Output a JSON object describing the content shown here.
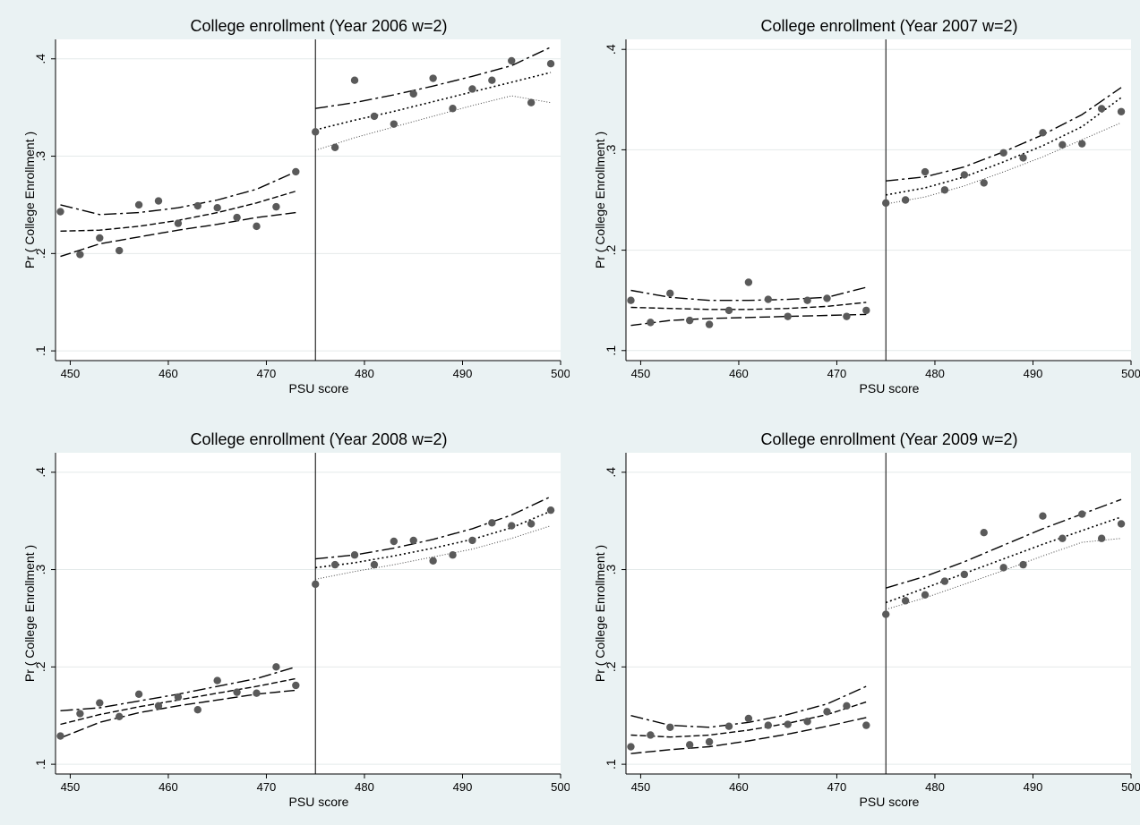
{
  "chart_data": [
    {
      "type": "scatter",
      "title": "College enrollment (Year 2006 w=2)",
      "xlabel": "PSU score",
      "ylabel": "Pr ( College Enrollment )",
      "xlim": [
        448.5,
        500
      ],
      "ylim": [
        0.09,
        0.42
      ],
      "xticks": [
        450,
        460,
        470,
        480,
        490,
        500
      ],
      "xtick_labels": [
        "450",
        "460",
        "470",
        "480",
        "490",
        "500"
      ],
      "yticks": [
        0.1,
        0.2,
        0.3,
        0.4
      ],
      "ytick_labels": [
        ".1",
        ".2",
        ".3",
        ".4"
      ],
      "grid": true,
      "cutoff": 475,
      "points": {
        "x": [
          449,
          451,
          453,
          455,
          457,
          459,
          461,
          463,
          465,
          467,
          469,
          471,
          473,
          475,
          477,
          479,
          481,
          483,
          485,
          487,
          489,
          491,
          493,
          495,
          497,
          499
        ],
        "y": [
          0.243,
          0.199,
          0.216,
          0.203,
          0.25,
          0.254,
          0.231,
          0.249,
          0.247,
          0.237,
          0.228,
          0.248,
          0.284,
          0.325,
          0.309,
          0.378,
          0.341,
          0.333,
          0.364,
          0.38,
          0.349,
          0.369,
          0.378,
          0.398,
          0.355,
          0.395
        ]
      },
      "fits": {
        "left": {
          "x": [
            449,
            453,
            457,
            461,
            465,
            469,
            473
          ],
          "fit": [
            0.223,
            0.224,
            0.228,
            0.234,
            0.242,
            0.252,
            0.264
          ],
          "upper": [
            0.25,
            0.24,
            0.242,
            0.247,
            0.255,
            0.266,
            0.284
          ],
          "lower": [
            0.197,
            0.21,
            0.217,
            0.224,
            0.23,
            0.237,
            0.242
          ]
        },
        "right": {
          "x": [
            475,
            479,
            483,
            487,
            491,
            495,
            499
          ],
          "fit": [
            0.327,
            0.337,
            0.346,
            0.356,
            0.366,
            0.376,
            0.386
          ],
          "upper": [
            0.349,
            0.355,
            0.363,
            0.372,
            0.382,
            0.393,
            0.412
          ],
          "lower": [
            0.306,
            0.319,
            0.33,
            0.341,
            0.352,
            0.362,
            0.355
          ]
        }
      }
    },
    {
      "type": "scatter",
      "title": "College enrollment (Year 2007 w=2)",
      "xlabel": "PSU score",
      "ylabel": "Pr ( College Enrollment )",
      "xlim": [
        448.5,
        500
      ],
      "ylim": [
        0.09,
        0.41
      ],
      "xticks": [
        450,
        460,
        470,
        480,
        490,
        500
      ],
      "xtick_labels": [
        "450",
        "460",
        "470",
        "480",
        "490",
        "500"
      ],
      "yticks": [
        0.1,
        0.2,
        0.3,
        0.4
      ],
      "ytick_labels": [
        ".1",
        ".2",
        ".3",
        ".4"
      ],
      "grid": true,
      "cutoff": 475,
      "points": {
        "x": [
          449,
          451,
          453,
          455,
          457,
          459,
          461,
          463,
          465,
          467,
          469,
          471,
          473,
          475,
          477,
          479,
          481,
          483,
          485,
          487,
          489,
          491,
          493,
          495,
          497,
          499
        ],
        "y": [
          0.15,
          0.128,
          0.157,
          0.13,
          0.126,
          0.14,
          0.168,
          0.151,
          0.134,
          0.15,
          0.152,
          0.134,
          0.14,
          0.247,
          0.25,
          0.278,
          0.26,
          0.275,
          0.267,
          0.297,
          0.292,
          0.317,
          0.305,
          0.306,
          0.341,
          0.338
        ]
      },
      "fits": {
        "left": {
          "x": [
            449,
            453,
            457,
            461,
            465,
            469,
            473
          ],
          "fit": [
            0.143,
            0.142,
            0.141,
            0.141,
            0.142,
            0.144,
            0.148
          ],
          "upper": [
            0.16,
            0.153,
            0.15,
            0.15,
            0.151,
            0.153,
            0.163
          ],
          "lower": [
            0.125,
            0.13,
            0.132,
            0.133,
            0.134,
            0.135,
            0.136
          ]
        },
        "right": {
          "x": [
            475,
            479,
            483,
            487,
            491,
            495,
            499
          ],
          "fit": [
            0.255,
            0.262,
            0.273,
            0.288,
            0.304,
            0.323,
            0.352
          ],
          "upper": [
            0.269,
            0.273,
            0.283,
            0.298,
            0.315,
            0.335,
            0.362
          ],
          "lower": [
            0.246,
            0.253,
            0.264,
            0.278,
            0.293,
            0.31,
            0.327
          ]
        }
      }
    },
    {
      "type": "scatter",
      "title": "College enrollment (Year 2008 w=2)",
      "xlabel": "PSU score",
      "ylabel": "Pr ( College Enrollment )",
      "xlim": [
        448.5,
        500
      ],
      "ylim": [
        0.09,
        0.42
      ],
      "xticks": [
        450,
        460,
        470,
        480,
        490,
        500
      ],
      "xtick_labels": [
        "450",
        "460",
        "470",
        "480",
        "490",
        "500"
      ],
      "yticks": [
        0.1,
        0.2,
        0.3,
        0.4
      ],
      "ytick_labels": [
        ".1",
        ".2",
        ".3",
        ".4"
      ],
      "grid": true,
      "cutoff": 475,
      "points": {
        "x": [
          449,
          451,
          453,
          455,
          457,
          459,
          461,
          463,
          465,
          467,
          469,
          471,
          473,
          475,
          477,
          479,
          481,
          483,
          485,
          487,
          489,
          491,
          493,
          495,
          497,
          499
        ],
        "y": [
          0.129,
          0.152,
          0.163,
          0.149,
          0.172,
          0.16,
          0.169,
          0.156,
          0.186,
          0.174,
          0.173,
          0.2,
          0.181,
          0.285,
          0.305,
          0.315,
          0.305,
          0.329,
          0.33,
          0.309,
          0.315,
          0.33,
          0.348,
          0.345,
          0.347,
          0.361
        ]
      },
      "fits": {
        "left": {
          "x": [
            449,
            453,
            457,
            461,
            465,
            469,
            473
          ],
          "fit": [
            0.141,
            0.151,
            0.159,
            0.166,
            0.173,
            0.18,
            0.188
          ],
          "upper": [
            0.155,
            0.158,
            0.165,
            0.172,
            0.18,
            0.188,
            0.2
          ],
          "lower": [
            0.127,
            0.143,
            0.153,
            0.16,
            0.166,
            0.172,
            0.176
          ]
        },
        "right": {
          "x": [
            475,
            479,
            483,
            487,
            491,
            495,
            499
          ],
          "fit": [
            0.302,
            0.307,
            0.314,
            0.322,
            0.331,
            0.343,
            0.36
          ],
          "upper": [
            0.311,
            0.315,
            0.322,
            0.331,
            0.342,
            0.356,
            0.375
          ],
          "lower": [
            0.29,
            0.298,
            0.305,
            0.313,
            0.321,
            0.332,
            0.345
          ]
        }
      }
    },
    {
      "type": "scatter",
      "title": "College enrollment (Year 2009 w=2)",
      "xlabel": "PSU score",
      "ylabel": "Pr ( College Enrollment )",
      "xlim": [
        448.5,
        500
      ],
      "ylim": [
        0.09,
        0.42
      ],
      "xticks": [
        450,
        460,
        470,
        480,
        490,
        500
      ],
      "xtick_labels": [
        "450",
        "460",
        "470",
        "480",
        "490",
        "500"
      ],
      "yticks": [
        0.1,
        0.2,
        0.3,
        0.4
      ],
      "ytick_labels": [
        ".1",
        ".2",
        ".3",
        ".4"
      ],
      "grid": true,
      "cutoff": 475,
      "points": {
        "x": [
          449,
          451,
          453,
          455,
          457,
          459,
          461,
          463,
          465,
          467,
          469,
          471,
          473,
          475,
          477,
          479,
          481,
          483,
          485,
          487,
          489,
          491,
          493,
          495,
          497,
          499
        ],
        "y": [
          0.118,
          0.13,
          0.138,
          0.12,
          0.123,
          0.139,
          0.147,
          0.14,
          0.141,
          0.144,
          0.154,
          0.16,
          0.14,
          0.254,
          0.268,
          0.274,
          0.288,
          0.295,
          0.338,
          0.302,
          0.305,
          0.355,
          0.332,
          0.357,
          0.332,
          0.347
        ]
      },
      "fits": {
        "left": {
          "x": [
            449,
            453,
            457,
            461,
            465,
            469,
            473
          ],
          "fit": [
            0.13,
            0.128,
            0.13,
            0.135,
            0.142,
            0.151,
            0.164
          ],
          "upper": [
            0.15,
            0.14,
            0.138,
            0.143,
            0.151,
            0.162,
            0.18
          ],
          "lower": [
            0.111,
            0.115,
            0.118,
            0.124,
            0.131,
            0.139,
            0.148
          ]
        },
        "right": {
          "x": [
            475,
            479,
            483,
            487,
            491,
            495,
            499
          ],
          "fit": [
            0.266,
            0.281,
            0.296,
            0.311,
            0.326,
            0.34,
            0.354
          ],
          "upper": [
            0.281,
            0.293,
            0.308,
            0.325,
            0.342,
            0.357,
            0.372
          ],
          "lower": [
            0.259,
            0.271,
            0.285,
            0.299,
            0.314,
            0.328,
            0.332
          ]
        }
      }
    }
  ]
}
